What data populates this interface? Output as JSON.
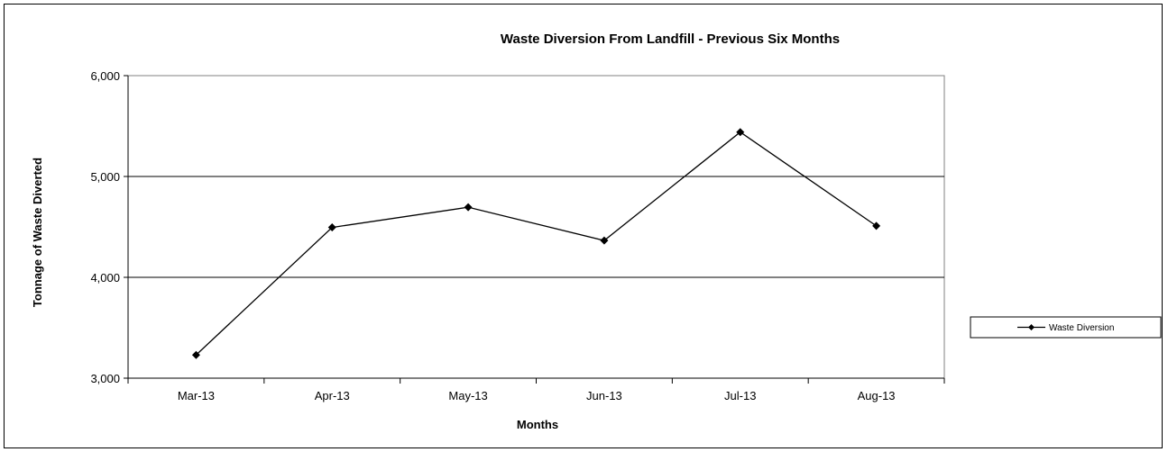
{
  "chart_data": {
    "type": "line",
    "title": "Waste Diversion From Landfill - Previous Six Months",
    "xlabel": "Months",
    "ylabel": "Tonnage of Waste Diverted",
    "categories": [
      "Mar-13",
      "Apr-13",
      "May-13",
      "Jun-13",
      "Jul-13",
      "Aug-13"
    ],
    "series": [
      {
        "name": "Waste Diversion",
        "values": [
          3230,
          4495,
          4695,
          4365,
          5440,
          4510
        ]
      }
    ],
    "ylim": [
      3000,
      6000
    ],
    "yticks": [
      3000,
      4000,
      5000,
      6000
    ],
    "ytick_labels": [
      "3,000",
      "4,000",
      "5,000",
      "6,000"
    ],
    "grid": true,
    "legend_position": "right",
    "line_color": "#000000"
  }
}
